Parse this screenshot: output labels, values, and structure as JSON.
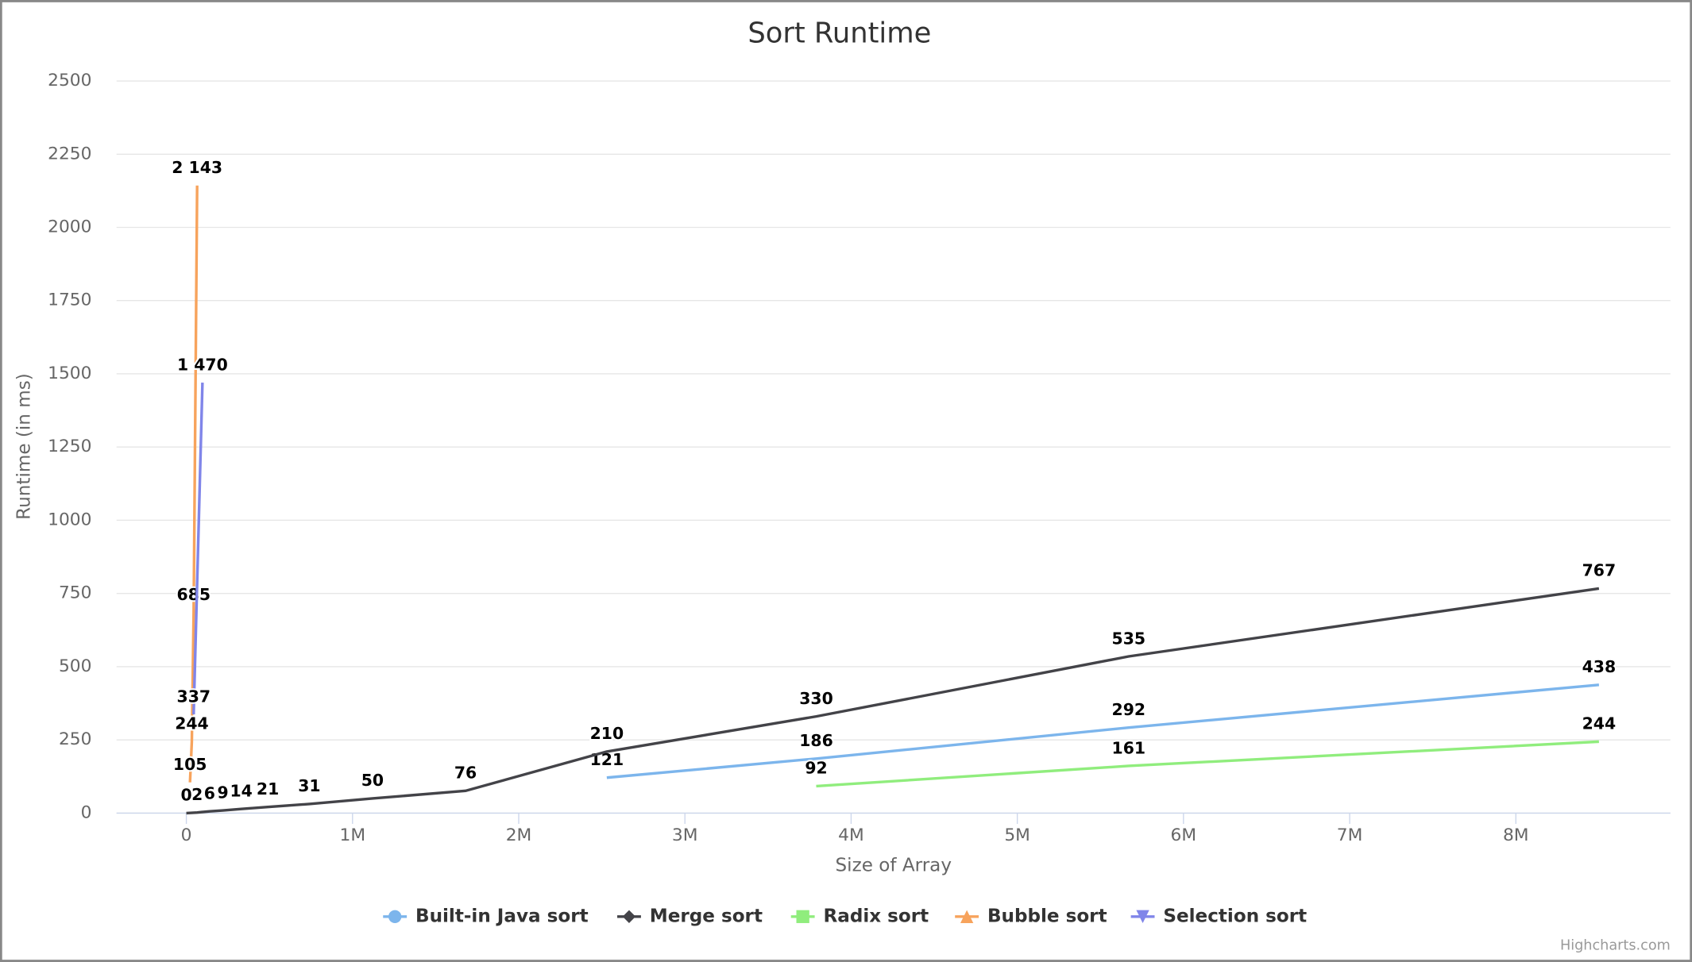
{
  "chart_data": {
    "type": "line",
    "title": "Sort Runtime",
    "x_label": "Size of Array",
    "y_label": "Runtime (in ms)",
    "credit": "Highcharts.com",
    "xlim": [
      -420000,
      8930000
    ],
    "xticks": [
      0,
      {
        "value": 1000000,
        "label": "1M"
      },
      {
        "value": 2000000,
        "label": "2M"
      },
      {
        "value": 3000000,
        "label": "3M"
      },
      {
        "value": 4000000,
        "label": "4M"
      },
      {
        "value": 5000000,
        "label": "5M"
      },
      {
        "value": 6000000,
        "label": "6M"
      },
      {
        "value": 7000000,
        "label": "7M"
      },
      {
        "value": 8000000,
        "label": "8M"
      }
    ],
    "ylim": [
      0,
      2500
    ],
    "yticks": [
      0,
      250,
      500,
      750,
      1000,
      1250,
      1500,
      1750,
      2000,
      2250,
      2500
    ],
    "grid": true,
    "legend": "bottom",
    "series": [
      {
        "name": "Built-in Java sort",
        "color": "#7cb5ec",
        "marker": "circle",
        "x": [
          2530000,
          3790000,
          5670000,
          8500000
        ],
        "values": [
          121,
          186,
          292,
          438
        ]
      },
      {
        "name": "Merge sort",
        "color": "#434348",
        "marker": "diamond",
        "x": [
          0,
          65000,
          140000,
          220000,
          330000,
          490000,
          740000,
          1120000,
          1680000,
          2530000,
          3790000,
          5670000,
          8500000
        ],
        "values": [
          0,
          2,
          6,
          9,
          14,
          21,
          31,
          50,
          76,
          210,
          330,
          535,
          767
        ]
      },
      {
        "name": "Radix sort",
        "color": "#90ed7d",
        "marker": "square",
        "x": [
          3790000,
          5670000,
          8500000
        ],
        "values": [
          92,
          161,
          244
        ]
      },
      {
        "name": "Bubble sort",
        "color": "#f7a35c",
        "marker": "triangle",
        "x": [
          22000,
          33000,
          44000,
          65000
        ],
        "values": [
          105,
          244,
          685,
          2143
        ],
        "value_labels": [
          "105",
          "244",
          "685",
          "2 143"
        ]
      },
      {
        "name": "Selection sort",
        "color": "#8085e9",
        "marker": "triangle-down",
        "x": [
          44000,
          97000
        ],
        "values": [
          337,
          1470
        ],
        "value_labels": [
          "337",
          "1 470"
        ]
      }
    ]
  }
}
